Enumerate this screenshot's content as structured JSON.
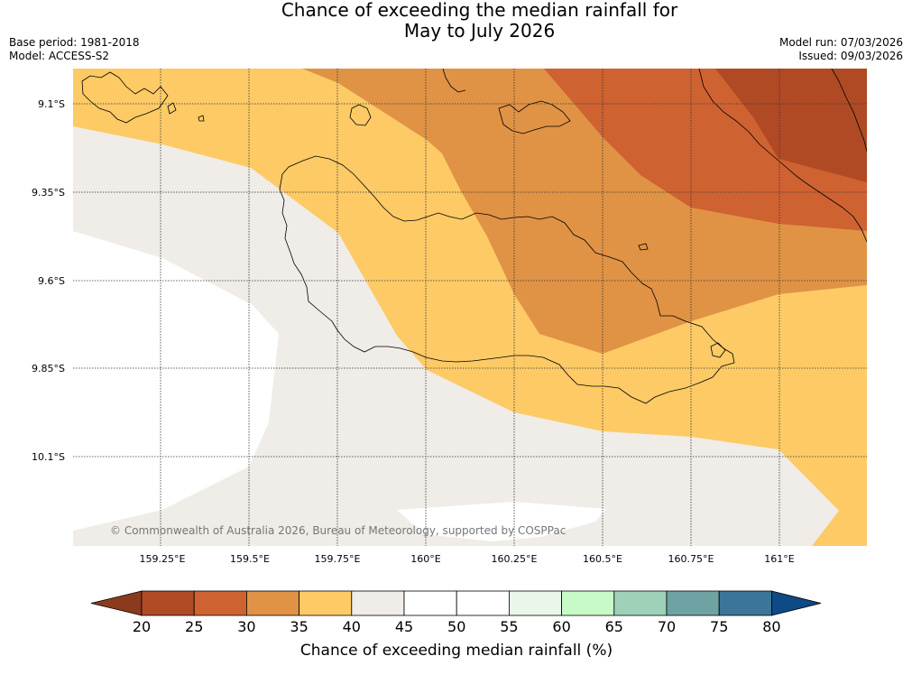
{
  "title": {
    "line1": "Chance of exceeding the median rainfall for",
    "line2": "May to July 2026"
  },
  "metadata": {
    "base_period": "Base period: 1981-2018",
    "model": "Model: ACCESS-S2",
    "model_run": "Model run: 07/03/2026",
    "issued": "Issued: 09/03/2026"
  },
  "map": {
    "lat_labels": [
      "9.1°S",
      "9.35°S",
      "9.6°S",
      "9.85°S",
      "10.1°S"
    ],
    "lon_labels": [
      "159.25°E",
      "159.5°E",
      "159.75°E",
      "160°E",
      "160.25°E",
      "160.5°E",
      "160.75°E",
      "161°E"
    ],
    "copyright": "© Commonwealth of Australia 2026, Bureau of Meteorology, supported by COSPPac"
  },
  "colorbar": {
    "label": "Chance of exceeding median rainfall (%)",
    "ticks": [
      "20",
      "25",
      "30",
      "35",
      "40",
      "45",
      "50",
      "55",
      "60",
      "65",
      "70",
      "75",
      "80"
    ],
    "colors": {
      "under": "#8b3a1e",
      "c20_25": "#b04a24",
      "c25_30": "#cf6231",
      "c30_35": "#e09345",
      "c35_40": "#fdca66",
      "c40_45": "#f0ece7",
      "c45_50": "#ffffff",
      "c50_55": "#ffffff",
      "c55_60": "#eaf6ea",
      "c60_65": "#c8fac8",
      "c65_70": "#9ed1b8",
      "c70_75": "#6fa3a3",
      "c75_80": "#3b7698",
      "over": "#0d4a86"
    }
  }
}
